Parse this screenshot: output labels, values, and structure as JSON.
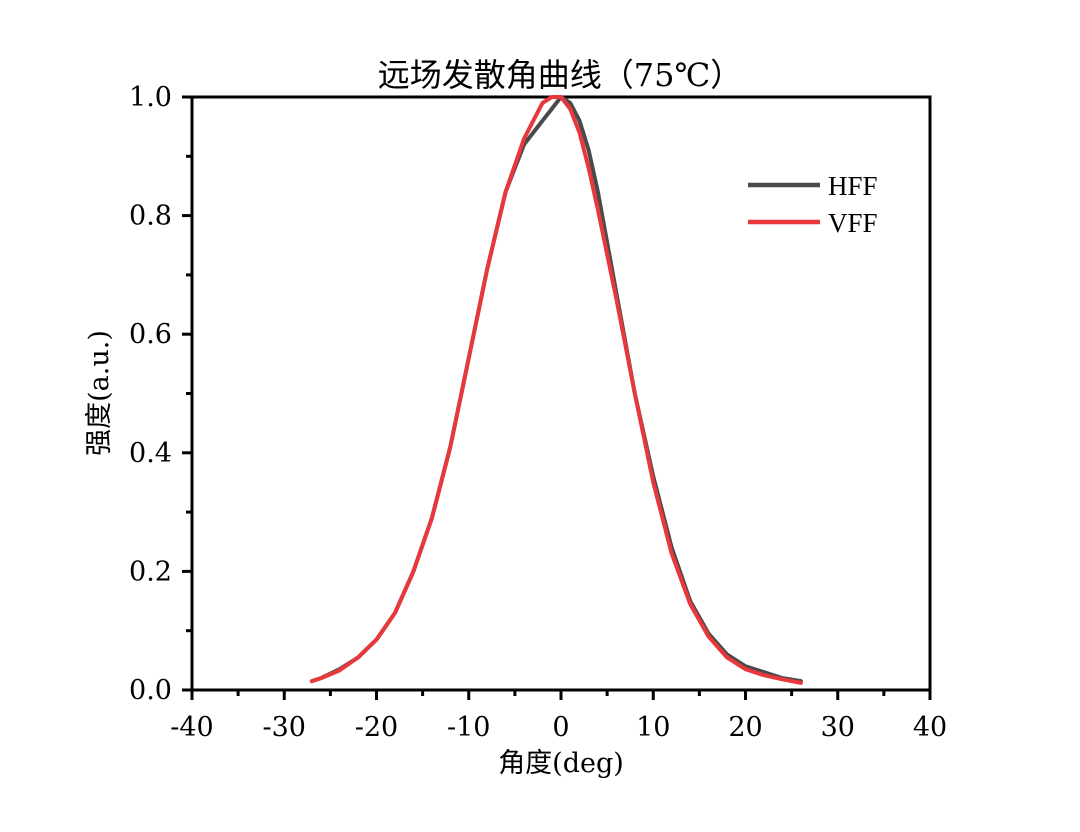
{
  "chart_data": {
    "type": "line",
    "title": "远场发散角曲线（75℃）",
    "xlabel": "角度(deg)",
    "ylabel": "强度(a.u.)",
    "xlim": [
      -40,
      40
    ],
    "ylim": [
      0,
      1.0
    ],
    "x_ticks": [
      -40,
      -30,
      -20,
      -10,
      0,
      10,
      20,
      30,
      40
    ],
    "x_tick_labels": [
      "-40",
      "-30",
      "-20",
      "-10",
      "0",
      "10",
      "20",
      "30",
      "40"
    ],
    "y_ticks": [
      0,
      0.2,
      0.4,
      0.6,
      0.8,
      1.0
    ],
    "y_tick_labels": [
      "0.0",
      "0.2",
      "0.4",
      "0.6",
      "0.8",
      "1.0"
    ],
    "grid": false,
    "legend_position": "top-right",
    "series": [
      {
        "name": "HFF",
        "color": "#4a4a4a",
        "x": [
          -27,
          -26,
          -24,
          -22,
          -20,
          -18,
          -16,
          -14,
          -12,
          -10,
          -8,
          -6,
          -4,
          -2,
          -1,
          0,
          1,
          2,
          3,
          4,
          6,
          8,
          10,
          12,
          14,
          16,
          18,
          20,
          22,
          24,
          26
        ],
        "y": [
          0.015,
          0.02,
          0.035,
          0.055,
          0.085,
          0.13,
          0.2,
          0.29,
          0.41,
          0.56,
          0.71,
          0.84,
          0.92,
          0.96,
          0.98,
          1.0,
          0.99,
          0.96,
          0.91,
          0.84,
          0.67,
          0.5,
          0.36,
          0.24,
          0.15,
          0.095,
          0.06,
          0.04,
          0.03,
          0.02,
          0.015
        ]
      },
      {
        "name": "VFF",
        "color": "#e8383c",
        "x": [
          -27,
          -26,
          -24,
          -22,
          -20,
          -18,
          -16,
          -14,
          -12,
          -10,
          -8,
          -6,
          -4,
          -2,
          -1,
          0,
          1,
          2,
          3,
          4,
          6,
          8,
          10,
          12,
          14,
          16,
          18,
          20,
          22,
          24,
          26
        ],
        "y": [
          0.015,
          0.02,
          0.033,
          0.055,
          0.085,
          0.13,
          0.2,
          0.29,
          0.41,
          0.56,
          0.71,
          0.84,
          0.93,
          0.99,
          1.0,
          1.0,
          0.98,
          0.94,
          0.88,
          0.81,
          0.66,
          0.5,
          0.35,
          0.23,
          0.145,
          0.09,
          0.055,
          0.035,
          0.025,
          0.018,
          0.012
        ]
      }
    ]
  }
}
